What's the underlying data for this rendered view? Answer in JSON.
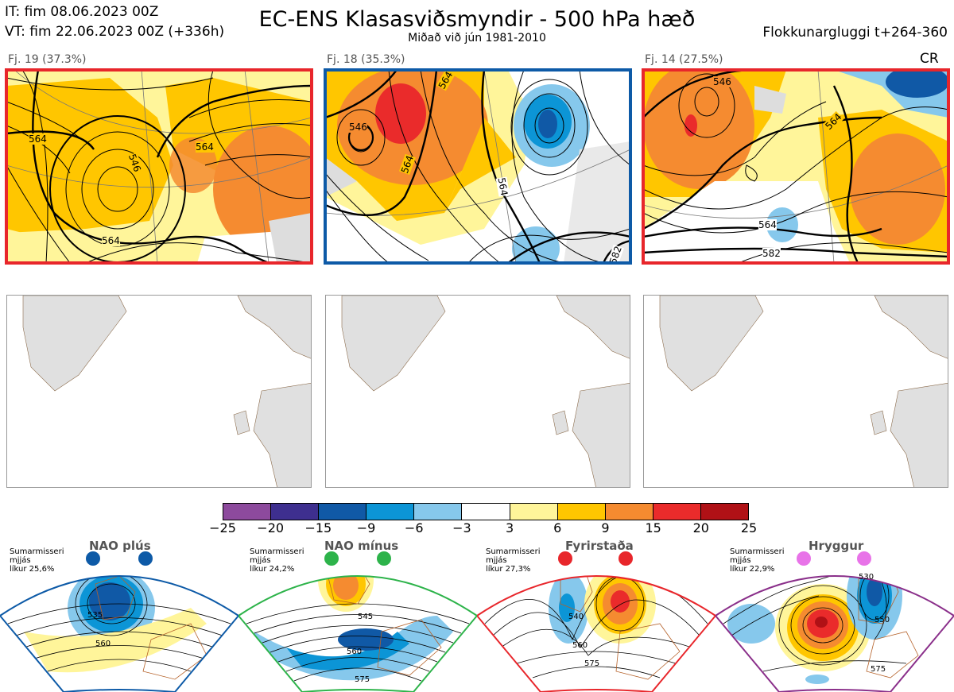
{
  "header": {
    "it_line": "IT: fim 08.06.2023 00Z",
    "vt_line": "VT: fim 22.06.2023 00Z  (+336h)",
    "title": "EC-ENS Klasasviðsmyndir - 500 hPa hæð",
    "subtitle": "Miðað við jún 1981-2010",
    "window": "Flokkunargluggi t+264-360"
  },
  "panels": [
    {
      "label": "Fj. 19 (37.3%)",
      "frame_color": "#e8262b",
      "contours": [
        "564",
        "546",
        "564",
        "564"
      ]
    },
    {
      "label": "Fj. 18 (35.3%)",
      "frame_color": "#0d5aa7",
      "contours": [
        "546",
        "564",
        "564",
        "564",
        "582"
      ]
    },
    {
      "label": "Fj. 14 (27.5%)",
      "frame_color": "#e8262b",
      "contours": [
        "546",
        "564",
        "564",
        "582"
      ]
    }
  ],
  "cr_label": "CR",
  "colorbar": {
    "colors": [
      "#8d4a9d",
      "#3e2f8f",
      "#1059a6",
      "#0c95d6",
      "#86c8ec",
      "#ffffff",
      "#fff59a",
      "#ffc600",
      "#f58b30",
      "#ea2b2b",
      "#b01116"
    ],
    "ticks": [
      "−25",
      "−20",
      "−15",
      "−9",
      "−6",
      "−3",
      "3",
      "6",
      "9",
      "15",
      "20",
      "25"
    ]
  },
  "regimes": [
    {
      "name": "NAO plús",
      "line1": "Sumarmisseri",
      "line2": "mjjás",
      "line3": "líkur 25,6%",
      "color": "#0d5aa7",
      "contours": [
        "535",
        "560"
      ]
    },
    {
      "name": "NAO mínus",
      "line1": "Sumarmisseri",
      "line2": "mjjás",
      "line3": "líkur 24,2%",
      "color": "#2db34a",
      "contours": [
        "545",
        "560",
        "575"
      ]
    },
    {
      "name": "Fyrirstaða",
      "line1": "Sumarmisseri",
      "line2": "mjjás",
      "line3": "líkur 27,3%",
      "color": "#e8262b",
      "contours": [
        "540",
        "560",
        "575"
      ]
    },
    {
      "name": "Hryggur",
      "line1": "Sumarmisseri",
      "line2": "mjjás",
      "line3": "líkur 22,9%",
      "color": "#e873e8",
      "contours": [
        "530",
        "550",
        "575"
      ]
    }
  ]
}
